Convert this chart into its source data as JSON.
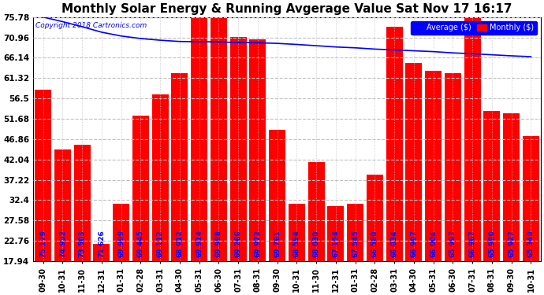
{
  "title": "Monthly Solar Energy & Running Avgerage Value Sat Nov 17 16:17",
  "copyright": "Copyright 2018 Cartronics.com",
  "categories": [
    "09-30",
    "10-31",
    "11-30",
    "12-31",
    "01-31",
    "02-28",
    "03-31",
    "04-30",
    "05-31",
    "06-30",
    "07-31",
    "08-31",
    "09-30",
    "10-31",
    "11-30",
    "12-31",
    "01-31",
    "02-28",
    "03-31",
    "04-30",
    "05-31",
    "06-30",
    "07-31",
    "08-31",
    "09-30",
    "10-31"
  ],
  "monthly_values": [
    "75.179",
    "74.932",
    "73.503",
    "71.626",
    "69.999",
    "69.445",
    "69.112",
    "68.912",
    "69.914",
    "69.998",
    "69.266",
    "69.972",
    "69.761",
    "68.594",
    "68.030",
    "67.154",
    "67.545",
    "66.580",
    "66.034",
    "66.997",
    "66.004",
    "65.997",
    "66.967",
    "65.990",
    "65.927",
    "65.340"
  ],
  "bar_tops": [
    58.5,
    44.5,
    45.5,
    22.0,
    31.5,
    52.5,
    57.5,
    62.5,
    75.7,
    75.7,
    71.0,
    70.5,
    49.0,
    31.5,
    41.5,
    31.0,
    31.5,
    38.5,
    73.5,
    65.0,
    63.0,
    62.5,
    75.7,
    53.5,
    53.0,
    47.5
  ],
  "avg_values": [
    75.78,
    74.7,
    73.5,
    72.2,
    71.3,
    70.7,
    70.3,
    70.0,
    69.95,
    69.9,
    69.75,
    69.7,
    69.55,
    69.3,
    69.0,
    68.7,
    68.5,
    68.2,
    68.0,
    67.8,
    67.6,
    67.3,
    67.1,
    66.85,
    66.6,
    66.4
  ],
  "ylim_min": 17.94,
  "ylim_max": 75.78,
  "yticks": [
    17.94,
    22.76,
    27.58,
    32.4,
    37.22,
    42.04,
    46.86,
    51.68,
    56.5,
    61.32,
    66.14,
    70.96,
    75.78
  ],
  "bar_color": "#FF0000",
  "line_color": "#0000FF",
  "bg_color": "#FFFFFF",
  "plot_bg": "#FFFFFF",
  "grid_color": "#C0C0C0",
  "title_fontsize": 11,
  "bar_label_color": "#0000FF",
  "bar_label_fontsize": 6.5,
  "legend_avg_color": "#0000FF",
  "legend_monthly_color": "#FF0000"
}
